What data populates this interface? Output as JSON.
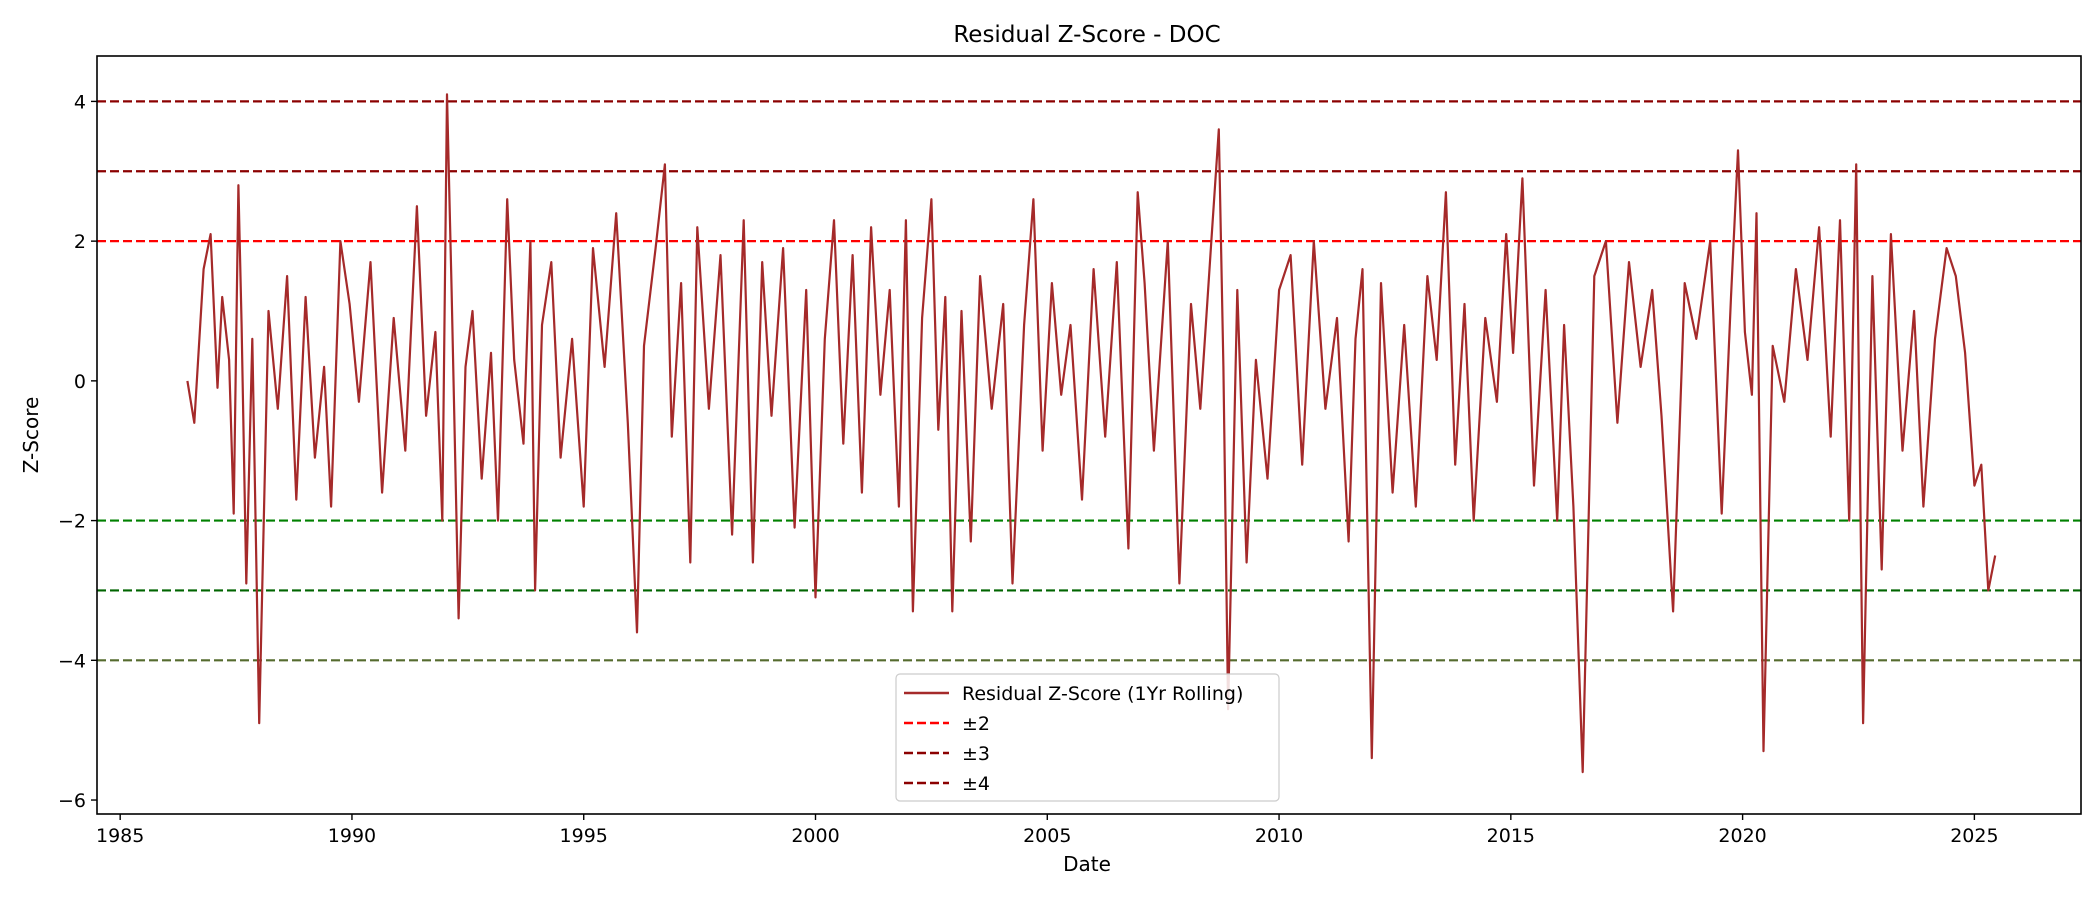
{
  "chart_data": {
    "type": "line",
    "title": "Residual Z-Score - DOC",
    "xlabel": "Date",
    "ylabel": "Z-Score",
    "xlim": [
      1984.5,
      2027.3
    ],
    "ylim": [
      -6.2,
      4.65
    ],
    "x_ticks": [
      1985,
      1990,
      1995,
      2000,
      2005,
      2010,
      2015,
      2020,
      2025
    ],
    "y_ticks": [
      -6,
      -4,
      -2,
      0,
      2,
      4
    ],
    "y_tick_labels": [
      "−6",
      "−4",
      "−2",
      "0",
      "2",
      "4"
    ],
    "grid": false,
    "legend_position": "bottom-center",
    "series": [
      {
        "name": "Residual Z-Score (1Yr Rolling)",
        "color": "#a52a2a",
        "x": [
          1986.45,
          1986.6,
          1986.8,
          1986.95,
          1987.1,
          1987.2,
          1987.35,
          1987.45,
          1987.55,
          1987.62,
          1987.72,
          1987.85,
          1988.0,
          1988.2,
          1988.4,
          1988.6,
          1988.8,
          1989.0,
          1989.2,
          1989.4,
          1989.55,
          1989.75,
          1989.95,
          1990.15,
          1990.4,
          1990.65,
          1990.9,
          1991.15,
          1991.4,
          1991.6,
          1991.8,
          1991.95,
          1992.05,
          1992.15,
          1992.3,
          1992.45,
          1992.6,
          1992.8,
          1993.0,
          1993.15,
          1993.35,
          1993.5,
          1993.7,
          1993.85,
          1993.95,
          1994.1,
          1994.3,
          1994.5,
          1994.75,
          1995.0,
          1995.2,
          1995.45,
          1995.7,
          1995.95,
          1996.15,
          1996.3,
          1996.55,
          1996.75,
          1996.9,
          1997.1,
          1997.3,
          1997.45,
          1997.7,
          1997.95,
          1998.2,
          1998.45,
          1998.65,
          1998.85,
          1999.05,
          1999.3,
          1999.55,
          1999.8,
          2000.0,
          2000.2,
          2000.4,
          2000.6,
          2000.8,
          2001.0,
          2001.2,
          2001.4,
          2001.6,
          2001.8,
          2001.95,
          2002.1,
          2002.3,
          2002.5,
          2002.65,
          2002.8,
          2002.95,
          2003.15,
          2003.35,
          2003.55,
          2003.8,
          2004.05,
          2004.25,
          2004.5,
          2004.7,
          2004.9,
          2005.1,
          2005.3,
          2005.5,
          2005.75,
          2006.0,
          2006.25,
          2006.5,
          2006.75,
          2006.95,
          2007.1,
          2007.3,
          2007.6,
          2007.85,
          2008.1,
          2008.3,
          2008.55,
          2008.7,
          2008.8,
          2008.9,
          2009.1,
          2009.3,
          2009.5,
          2009.75,
          2010.0,
          2010.25,
          2010.5,
          2010.75,
          2011.0,
          2011.25,
          2011.5,
          2011.65,
          2011.8,
          2012.0,
          2012.2,
          2012.45,
          2012.7,
          2012.95,
          2013.2,
          2013.4,
          2013.6,
          2013.8,
          2014.0,
          2014.2,
          2014.45,
          2014.7,
          2014.9,
          2015.05,
          2015.25,
          2015.5,
          2015.75,
          2016.0,
          2016.15,
          2016.35,
          2016.55,
          2016.8,
          2017.05,
          2017.3,
          2017.55,
          2017.8,
          2018.05,
          2018.25,
          2018.5,
          2018.75,
          2019.0,
          2019.3,
          2019.55,
          2019.75,
          2019.9,
          2020.05,
          2020.2,
          2020.3,
          2020.45,
          2020.65,
          2020.9,
          2021.15,
          2021.4,
          2021.65,
          2021.9,
          2022.1,
          2022.3,
          2022.45,
          2022.6,
          2022.8,
          2023.0,
          2023.2,
          2023.45,
          2023.7,
          2023.9,
          2024.15,
          2024.4,
          2024.6,
          2024.8,
          2025.0,
          2025.15,
          2025.3,
          2025.45
        ],
        "y": [
          0.0,
          -0.6,
          1.6,
          2.1,
          -0.1,
          1.2,
          0.3,
          -1.9,
          2.8,
          0.8,
          -2.9,
          0.6,
          -4.9,
          1.0,
          -0.4,
          1.5,
          -1.7,
          1.2,
          -1.1,
          0.2,
          -1.8,
          2.0,
          1.1,
          -0.3,
          1.7,
          -1.6,
          0.9,
          -1.0,
          2.5,
          -0.5,
          0.7,
          -2.0,
          4.1,
          1.3,
          -3.4,
          0.2,
          1.0,
          -1.4,
          0.4,
          -2.0,
          2.6,
          0.3,
          -0.9,
          2.0,
          -3.0,
          0.8,
          1.7,
          -1.1,
          0.6,
          -1.8,
          1.9,
          0.2,
          2.4,
          -0.6,
          -3.6,
          0.5,
          1.9,
          3.1,
          -0.8,
          1.4,
          -2.6,
          2.2,
          -0.4,
          1.8,
          -2.2,
          2.3,
          -2.6,
          1.7,
          -0.5,
          1.9,
          -2.1,
          1.3,
          -3.1,
          0.6,
          2.3,
          -0.9,
          1.8,
          -1.6,
          2.2,
          -0.2,
          1.3,
          -1.8,
          2.3,
          -3.3,
          0.9,
          2.6,
          -0.7,
          1.2,
          -3.3,
          1.0,
          -2.3,
          1.5,
          -0.4,
          1.1,
          -2.9,
          0.8,
          2.6,
          -1.0,
          1.4,
          -0.2,
          0.8,
          -1.7,
          1.6,
          -0.8,
          1.7,
          -2.4,
          2.7,
          1.4,
          -1.0,
          2.0,
          -2.9,
          1.1,
          -0.4,
          2.1,
          3.6,
          0.2,
          -4.7,
          1.3,
          -2.6,
          0.3,
          -1.4,
          1.3,
          1.8,
          -1.2,
          2.0,
          -0.4,
          0.9,
          -2.3,
          0.6,
          1.6,
          -5.4,
          1.4,
          -1.6,
          0.8,
          -1.8,
          1.5,
          0.3,
          2.7,
          -1.2,
          1.1,
          -2.0,
          0.9,
          -0.3,
          2.1,
          0.4,
          2.9,
          -1.5,
          1.3,
          -2.0,
          0.8,
          -1.8,
          -5.6,
          1.5,
          2.0,
          -0.6,
          1.7,
          0.2,
          1.3,
          -0.5,
          -3.3,
          1.4,
          0.6,
          2.0,
          -1.9,
          1.2,
          3.3,
          0.7,
          -0.2,
          2.4,
          -5.3,
          0.5,
          -0.3,
          1.6,
          0.3,
          2.2,
          -0.8,
          2.3,
          -2.0,
          3.1,
          -4.9,
          1.5,
          -2.7,
          2.1,
          -1.0,
          1.0,
          -1.8,
          0.6,
          1.9,
          1.5,
          0.4,
          -1.5,
          -1.2,
          -3.0,
          -2.5
        ]
      }
    ],
    "reference_lines": [
      {
        "y": 2,
        "color": "#ff0000",
        "legend": "±2"
      },
      {
        "y": -2,
        "color": "#008000",
        "legend": ""
      },
      {
        "y": 3,
        "color": "#8b0000",
        "legend": "±3"
      },
      {
        "y": -3,
        "color": "#006400",
        "legend": ""
      },
      {
        "y": 4,
        "color": "#8b0000",
        "legend": "±4"
      },
      {
        "y": -4,
        "color": "#556b2f",
        "legend": ""
      }
    ]
  }
}
